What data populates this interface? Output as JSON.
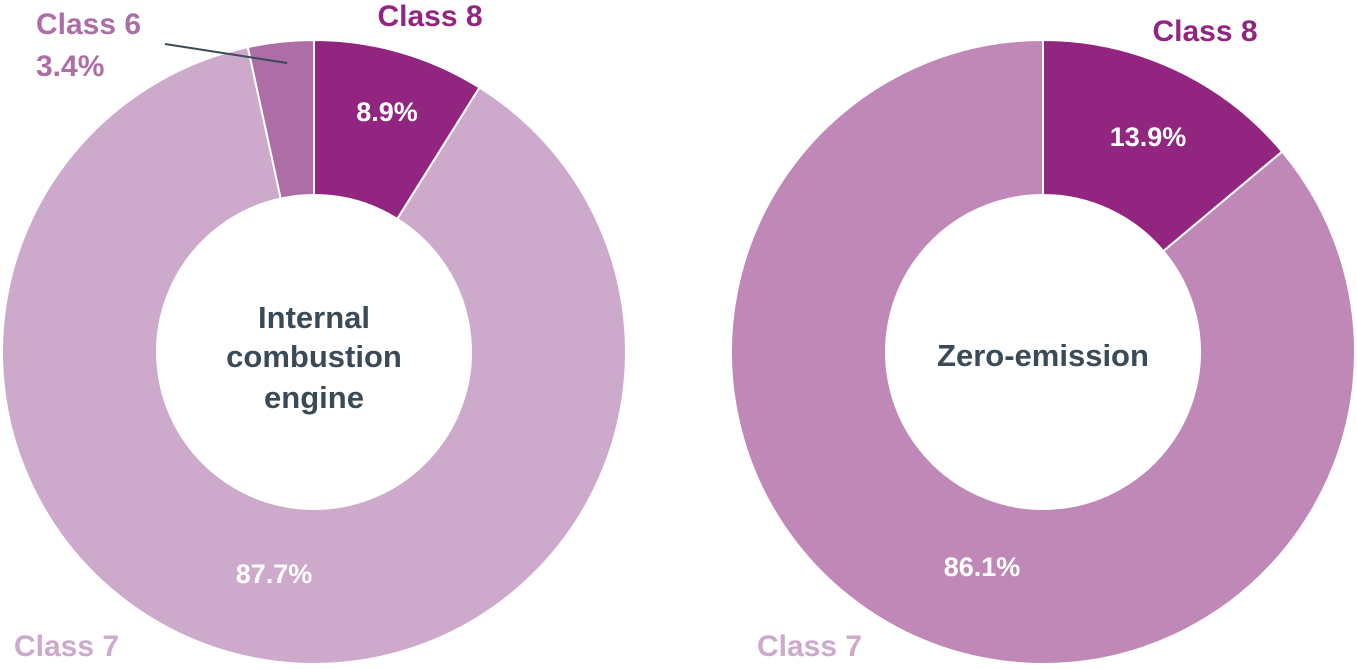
{
  "chart_data": [
    {
      "type": "pie",
      "variant": "donut",
      "center_label": [
        "Internal",
        "combustion",
        "engine"
      ],
      "categories": [
        "Class 8",
        "Class 7",
        "Class 6"
      ],
      "values": [
        8.9,
        87.7,
        3.4
      ],
      "value_labels": [
        "8.9%",
        "87.7%",
        "3.4%"
      ],
      "colors": [
        "#922580",
        "#cda9cb",
        "#ad6da5"
      ],
      "category_label_colors": [
        "#922580",
        "#cda9cb",
        "#ad6da5"
      ]
    },
    {
      "type": "pie",
      "variant": "donut",
      "center_label": [
        "Zero-emission"
      ],
      "categories": [
        "Class 8",
        "Class 7"
      ],
      "values": [
        13.9,
        86.1
      ],
      "value_labels": [
        "13.9%",
        "86.1%"
      ],
      "colors": [
        "#922580",
        "#bf88b6"
      ],
      "category_label_colors": [
        "#922580",
        "#cda9cb"
      ]
    }
  ]
}
